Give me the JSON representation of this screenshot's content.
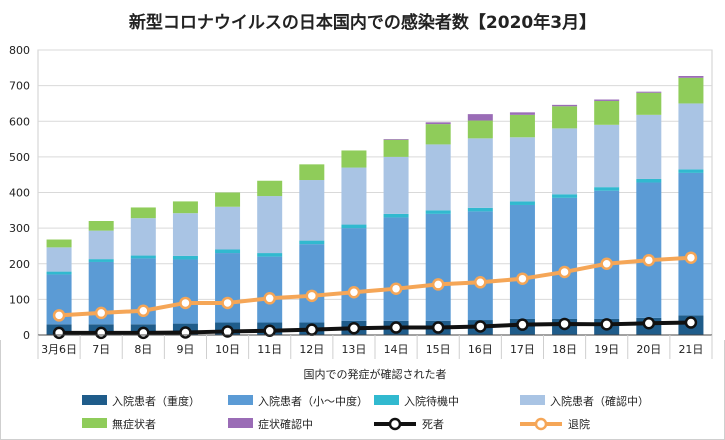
{
  "chart_data": {
    "type": "bar",
    "title": "新型コロナウイルスの日本国内での感染者数【2020年3月】",
    "xlabel": "国内での発症が確認された者",
    "ylabel": "",
    "ylim": [
      0,
      800
    ],
    "yticks": [
      "0",
      "100",
      "200",
      "300",
      "400",
      "500",
      "600",
      "700",
      "800"
    ],
    "grid": true,
    "legend_position": "bottom",
    "categories": [
      "3月6日",
      "7日",
      "8日",
      "9日",
      "10日",
      "11日",
      "12日",
      "13日",
      "14日",
      "15日",
      "16日",
      "17日",
      "18日",
      "19日",
      "20日",
      "21日"
    ],
    "bar_series": [
      {
        "name": "入院患者（重度）",
        "color": "#1f5c8a",
        "values": [
          30,
          30,
          30,
          32,
          35,
          35,
          35,
          40,
          40,
          40,
          42,
          45,
          45,
          45,
          48,
          55
        ]
      },
      {
        "name": "入院患者（小～中度）",
        "color": "#5b9bd5",
        "values": [
          140,
          175,
          185,
          180,
          195,
          185,
          220,
          260,
          290,
          300,
          305,
          320,
          340,
          360,
          380,
          400
        ]
      },
      {
        "name": "入院待機中",
        "color": "#31b9cf",
        "values": [
          8,
          8,
          8,
          10,
          10,
          10,
          10,
          10,
          10,
          10,
          10,
          10,
          10,
          10,
          10,
          10
        ]
      },
      {
        "name": "入院患者（確認中）",
        "color": "#a9c4e4",
        "values": [
          68,
          80,
          105,
          120,
          120,
          160,
          170,
          160,
          160,
          185,
          195,
          180,
          185,
          175,
          180,
          185
        ]
      },
      {
        "name": "無症状者",
        "color": "#8fcc5a",
        "values": [
          22,
          27,
          30,
          33,
          40,
          43,
          44,
          48,
          48,
          57,
          50,
          63,
          62,
          67,
          62,
          72
        ]
      },
      {
        "name": "症状確認中",
        "color": "#9a6cb6",
        "values": [
          0,
          0,
          0,
          0,
          0,
          0,
          0,
          0,
          2,
          5,
          18,
          7,
          4,
          4,
          3,
          5
        ]
      }
    ],
    "line_series": [
      {
        "name": "死者",
        "color": "#111111",
        "values": [
          6,
          6,
          6,
          7,
          10,
          12,
          15,
          19,
          21,
          21,
          24,
          29,
          31,
          30,
          33,
          35
        ]
      },
      {
        "name": "退院",
        "color": "#f5a657",
        "values": [
          55,
          62,
          68,
          90,
          90,
          103,
          110,
          120,
          130,
          142,
          148,
          158,
          177,
          200,
          210,
          217
        ]
      }
    ]
  }
}
